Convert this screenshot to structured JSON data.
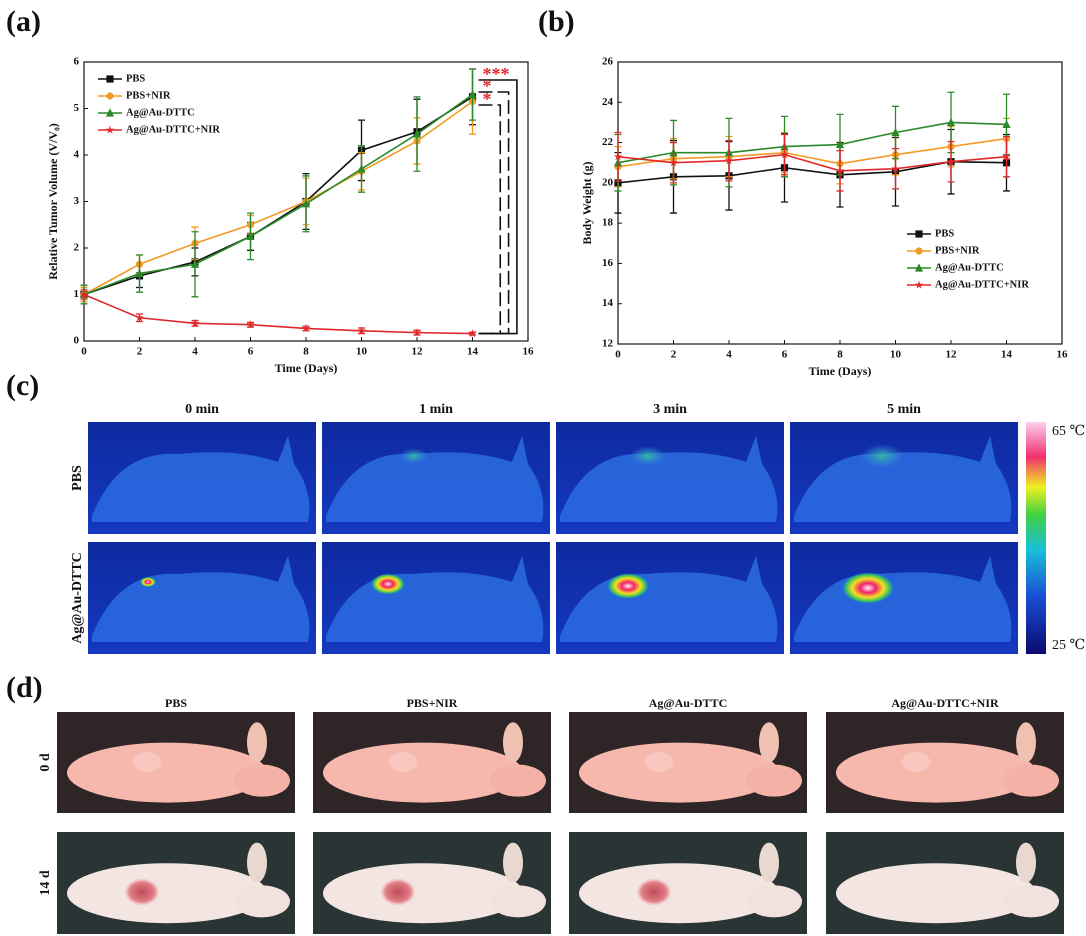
{
  "chart_data": [
    {
      "type": "line",
      "panel_label": "(a)",
      "x_label": "Time (Days)",
      "y_label": "Relative Tumor Volume (V/V₀)",
      "x": [
        0,
        2,
        4,
        6,
        8,
        10,
        12,
        14
      ],
      "xlim": [
        0,
        16
      ],
      "xticks": [
        0,
        2,
        4,
        6,
        8,
        10,
        12,
        14,
        16
      ],
      "ylim": [
        0,
        6
      ],
      "yticks": [
        0,
        1,
        2,
        3,
        4,
        5,
        6
      ],
      "legend": "upper left",
      "annotations": [
        "***",
        "*",
        "*"
      ],
      "series": [
        {
          "name": "PBS",
          "color": "#111111",
          "marker": "square",
          "values": [
            1,
            1.4,
            1.7,
            2.25,
            3.0,
            4.1,
            4.5,
            5.25
          ],
          "errors": [
            0.15,
            0.25,
            0.3,
            0.3,
            0.6,
            0.65,
            0.7,
            0.6
          ]
        },
        {
          "name": "PBS+NIR",
          "color": "#f39a24",
          "marker": "circle",
          "values": [
            1,
            1.65,
            2.1,
            2.5,
            3.0,
            3.65,
            4.3,
            5.15
          ],
          "errors": [
            0.15,
            0.2,
            0.35,
            0.2,
            0.5,
            0.4,
            0.5,
            0.7
          ]
        },
        {
          "name": "Ag@Au-DTTC",
          "color": "#2a8a2a",
          "marker": "triangle",
          "values": [
            1,
            1.45,
            1.65,
            2.25,
            2.95,
            3.7,
            4.45,
            5.3
          ],
          "errors": [
            0.2,
            0.4,
            0.7,
            0.5,
            0.6,
            0.5,
            0.8,
            0.55
          ]
        },
        {
          "name": "Ag@Au-DTTC+NIR",
          "color": "#e0282a",
          "marker": "star",
          "values": [
            1,
            0.5,
            0.38,
            0.35,
            0.27,
            0.22,
            0.18,
            0.16
          ],
          "errors": [
            0.1,
            0.08,
            0.06,
            0.05,
            0.05,
            0.06,
            0.05,
            0.03
          ]
        }
      ]
    },
    {
      "type": "line",
      "panel_label": "(b)",
      "x_label": "Time (Days)",
      "y_label": "Body Weight (g)",
      "x": [
        0,
        2,
        4,
        6,
        8,
        10,
        12,
        14
      ],
      "xlim": [
        0,
        16
      ],
      "xticks": [
        0,
        2,
        4,
        6,
        8,
        10,
        12,
        14,
        16
      ],
      "ylim": [
        12,
        26
      ],
      "yticks": [
        12,
        14,
        16,
        18,
        20,
        22,
        24,
        26
      ],
      "legend": "lower right",
      "series": [
        {
          "name": "PBS",
          "color": "#111111",
          "marker": "square",
          "values": [
            20.0,
            20.3,
            20.35,
            20.75,
            20.4,
            20.55,
            21.05,
            21.0
          ],
          "errors": [
            1.5,
            1.8,
            1.7,
            1.7,
            1.6,
            1.7,
            1.6,
            1.4
          ]
        },
        {
          "name": "PBS+NIR",
          "color": "#f39a24",
          "marker": "circle",
          "values": [
            20.8,
            21.2,
            21.3,
            21.5,
            20.95,
            21.4,
            21.8,
            22.2
          ],
          "errors": [
            1.0,
            1.0,
            1.0,
            1.0,
            1.0,
            1.0,
            1.0,
            1.0
          ]
        },
        {
          "name": "Ag@Au-DTTC",
          "color": "#2a8a2a",
          "marker": "triangle",
          "values": [
            21.0,
            21.5,
            21.5,
            21.8,
            21.9,
            22.5,
            23.0,
            22.9
          ],
          "errors": [
            1.4,
            1.6,
            1.7,
            1.5,
            1.5,
            1.3,
            1.5,
            1.5
          ]
        },
        {
          "name": "Ag@Au-DTTC+NIR",
          "color": "#e0282a",
          "marker": "star",
          "values": [
            21.3,
            21.0,
            21.1,
            21.4,
            20.6,
            20.7,
            21.05,
            21.3
          ],
          "errors": [
            1.2,
            1.0,
            1.0,
            1.0,
            1.0,
            1.0,
            1.0,
            1.0
          ]
        }
      ]
    }
  ],
  "thermal": {
    "panel_label": "(c)",
    "times": [
      "0 min",
      "1 min",
      "3 min",
      "5 min"
    ],
    "groups": [
      "PBS",
      "Ag@Au-DTTC"
    ],
    "scale_max": "65 ℃",
    "scale_min": "25 ℃"
  },
  "photos": {
    "panel_label": "(d)",
    "groups": [
      "PBS",
      "PBS+NIR",
      "Ag@Au-DTTC",
      "Ag@Au-DTTC+NIR"
    ],
    "days": [
      "0 d",
      "14 d"
    ]
  }
}
